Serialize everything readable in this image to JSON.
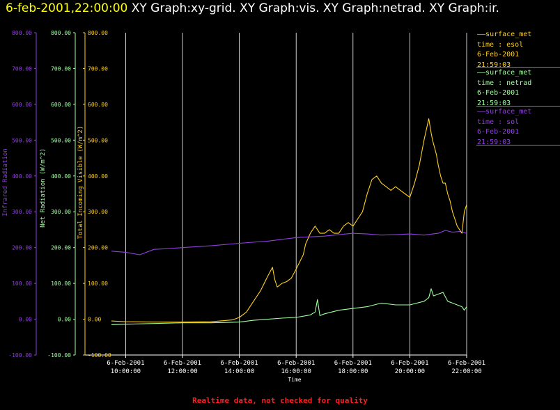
{
  "header": {
    "timestamp": "6-feb-2001,22:00:00",
    "graphs": "XY Graph:xy-grid.  XY Graph:vis.  XY Graph:netrad.  XY Graph:ir."
  },
  "footer": {
    "text": "Realtime data, not checked for quality"
  },
  "colors": {
    "ir": "#9040e0",
    "netrad": "#a0ffa0",
    "vis": "#ffd020",
    "grid": "#ffffff",
    "footer": "#ff2020"
  },
  "legend": [
    {
      "line1": "surface_met",
      "line2": "time : esol",
      "line3": "6-Feb-2001",
      "line4": "21:59:03",
      "color": "#ffd020"
    },
    {
      "line1": "surface_met",
      "line2": "time : netrad",
      "line3": "6-Feb-2001",
      "line4": "21:59:03",
      "color": "#a0ffa0"
    },
    {
      "line1": "surface_met",
      "line2": "time : sol",
      "line3": "6-Feb-2001",
      "line4": "21:59:03",
      "color": "#9040e0"
    }
  ],
  "chart_data": {
    "type": "line",
    "xlabel": "Time",
    "xlim": [
      "6-Feb-2001 09:30:00",
      "6-Feb-2001 22:00:00"
    ],
    "x_ticks": [
      {
        "date": "6-Feb-2001",
        "time": "10:00:00"
      },
      {
        "date": "6-Feb-2001",
        "time": "12:00:00"
      },
      {
        "date": "6-Feb-2001",
        "time": "14:00:00"
      },
      {
        "date": "6-Feb-2001",
        "time": "16:00:00"
      },
      {
        "date": "6-Feb-2001",
        "time": "18:00:00"
      },
      {
        "date": "6-Feb-2001",
        "time": "20:00:00"
      },
      {
        "date": "6-Feb-2001",
        "time": "22:00:00"
      }
    ],
    "y_ticks": [
      "-100.00",
      "0.00",
      "100.00",
      "200.00",
      "300.00",
      "400.00",
      "500.00",
      "600.00",
      "700.00",
      "800.00"
    ],
    "ylim": [
      -100,
      800
    ],
    "axes": [
      {
        "label": "Infrared Radiation",
        "color": "#9040e0"
      },
      {
        "label": "Net Radiation (W/m^2)",
        "color": "#a0ffa0"
      },
      {
        "label": "Total Incoming Visible (W/m^2)",
        "color": "#ffd020"
      }
    ],
    "grid": "vertical",
    "series": [
      {
        "name": "surface_met time : esol",
        "color": "#ffd020",
        "x": [
          "09:30",
          "10:00",
          "11:00",
          "12:00",
          "13:00",
          "13:45",
          "14:00",
          "14:15",
          "14:30",
          "14:45",
          "15:00",
          "15:10",
          "15:15",
          "15:20",
          "15:25",
          "15:30",
          "15:40",
          "15:50",
          "16:00",
          "16:15",
          "16:20",
          "16:30",
          "16:40",
          "16:45",
          "16:50",
          "17:00",
          "17:10",
          "17:20",
          "17:30",
          "17:40",
          "17:50",
          "18:00",
          "18:10",
          "18:20",
          "18:30",
          "18:40",
          "18:50",
          "19:00",
          "19:10",
          "19:20",
          "19:30",
          "19:40",
          "19:50",
          "20:00",
          "20:10",
          "20:20",
          "20:30",
          "20:40",
          "20:45",
          "20:48",
          "20:52",
          "20:56",
          "21:00",
          "21:05",
          "21:10",
          "21:15",
          "21:20",
          "21:25",
          "21:30",
          "21:35",
          "21:40",
          "21:45",
          "21:50",
          "21:55",
          "22:00"
        ],
        "values": [
          -5,
          -7,
          -8,
          -8,
          -7,
          -2,
          5,
          20,
          50,
          80,
          120,
          145,
          110,
          90,
          95,
          100,
          105,
          115,
          140,
          180,
          210,
          240,
          260,
          250,
          240,
          240,
          250,
          240,
          240,
          260,
          270,
          260,
          280,
          300,
          350,
          390,
          400,
          380,
          370,
          360,
          370,
          360,
          350,
          340,
          380,
          430,
          500,
          560,
          520,
          500,
          480,
          460,
          430,
          400,
          380,
          380,
          350,
          330,
          300,
          280,
          260,
          250,
          240,
          300,
          320
        ]
      },
      {
        "name": "surface_met time : netrad",
        "color": "#a0ffa0",
        "x": [
          "09:30",
          "10:00",
          "11:00",
          "12:00",
          "13:00",
          "14:00",
          "14:30",
          "15:00",
          "15:30",
          "16:00",
          "16:30",
          "16:40",
          "16:45",
          "16:50",
          "17:00",
          "17:30",
          "18:00",
          "18:30",
          "19:00",
          "19:30",
          "20:00",
          "20:30",
          "20:40",
          "20:45",
          "20:50",
          "21:00",
          "21:10",
          "21:20",
          "21:30",
          "21:40",
          "21:50",
          "21:55",
          "22:00"
        ],
        "values": [
          -15,
          -14,
          -12,
          -10,
          -10,
          -8,
          -3,
          0,
          3,
          5,
          12,
          20,
          55,
          10,
          15,
          25,
          30,
          35,
          45,
          40,
          40,
          50,
          60,
          85,
          65,
          70,
          75,
          50,
          45,
          40,
          35,
          25,
          35
        ]
      },
      {
        "name": "surface_met time : sol",
        "color": "#9040e0",
        "x": [
          "09:30",
          "10:00",
          "10:30",
          "11:00",
          "11:30",
          "12:00",
          "13:00",
          "14:00",
          "15:00",
          "16:00",
          "17:00",
          "18:00",
          "18:30",
          "19:00",
          "19:30",
          "20:00",
          "20:30",
          "21:00",
          "21:15",
          "21:30",
          "21:45",
          "22:00"
        ],
        "values": [
          190,
          187,
          180,
          195,
          197,
          200,
          205,
          212,
          218,
          228,
          232,
          240,
          238,
          235,
          236,
          238,
          235,
          240,
          248,
          243,
          245,
          240
        ]
      }
    ]
  }
}
